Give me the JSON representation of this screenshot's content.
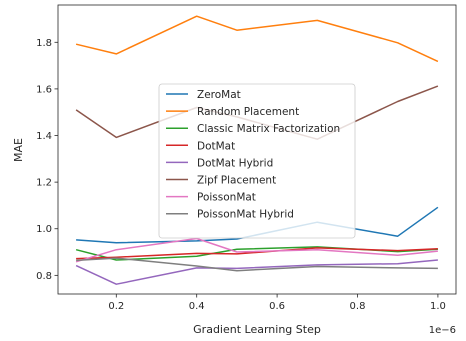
{
  "chart_data": {
    "type": "line",
    "xlabel": "Gradient Learning Step",
    "ylabel": "MAE",
    "x_offset_label": "1e−6",
    "xlim": [
      0.055,
      1.045
    ],
    "ylim": [
      0.72,
      1.96
    ],
    "x_ticks": [
      0.2,
      0.4,
      0.6,
      0.8,
      1.0
    ],
    "x_tick_labels": [
      "0.2",
      "0.4",
      "0.6",
      "0.8",
      "1.0"
    ],
    "y_ticks": [
      0.8,
      1.0,
      1.2,
      1.4,
      1.6,
      1.8
    ],
    "y_tick_labels": [
      "0.8",
      "1.0",
      "1.2",
      "1.4",
      "1.6",
      "1.8"
    ],
    "x": [
      0.1,
      0.2,
      0.4,
      0.5,
      0.7,
      0.9,
      1.0
    ],
    "legend_position": "center",
    "grid": false,
    "series": [
      {
        "name": "ZeroMat",
        "color": "#1f77b4",
        "values": [
          0.952,
          0.94,
          0.948,
          0.956,
          1.028,
          0.968,
          1.092
        ]
      },
      {
        "name": "Random Placement",
        "color": "#ff7f0e",
        "values": [
          1.792,
          1.75,
          1.912,
          1.852,
          1.894,
          1.798,
          1.718
        ]
      },
      {
        "name": "Classic Matrix Factorization",
        "color": "#2ca02c",
        "values": [
          0.91,
          0.866,
          0.882,
          0.912,
          0.922,
          0.902,
          0.912
        ]
      },
      {
        "name": "DotMat",
        "color": "#d62728",
        "values": [
          0.872,
          0.878,
          0.894,
          0.892,
          0.918,
          0.906,
          0.914
        ]
      },
      {
        "name": "DotMat Hybrid",
        "color": "#9467bd",
        "values": [
          0.842,
          0.762,
          0.832,
          0.83,
          0.845,
          0.85,
          0.866
        ]
      },
      {
        "name": "Zipf Placement",
        "color": "#8c564b",
        "values": [
          1.51,
          1.392,
          1.52,
          1.48,
          1.384,
          1.546,
          1.612
        ]
      },
      {
        "name": "PoissonMat",
        "color": "#e377c2",
        "values": [
          0.858,
          0.91,
          0.958,
          0.9,
          0.91,
          0.886,
          0.904
        ]
      },
      {
        "name": "PoissonMat Hybrid",
        "color": "#7f7f7f",
        "values": [
          0.864,
          0.874,
          0.84,
          0.82,
          0.838,
          0.832,
          0.83
        ]
      }
    ]
  }
}
